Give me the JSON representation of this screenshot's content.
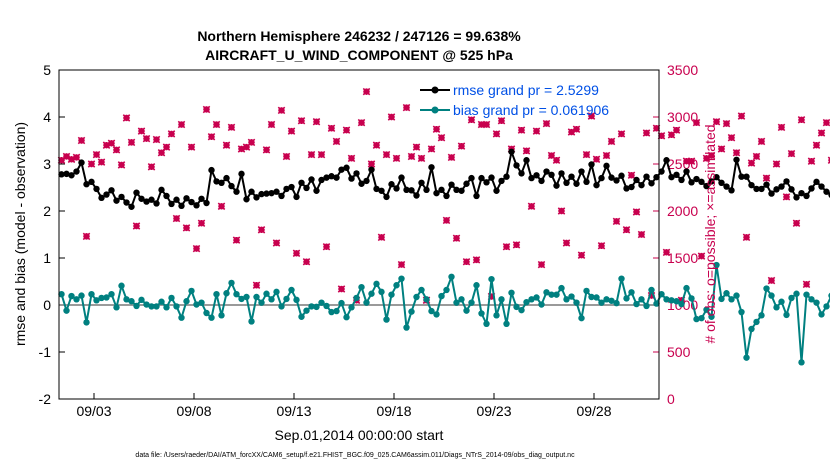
{
  "chart_data": {
    "type": "line",
    "title_line1": "Northern Hemisphere 246232 / 247126 = 99.638%",
    "title_line2": "AIRCRAFT_U_WIND_COMPONENT @ 525 hPa",
    "xlabel": "Sep.01,2014 00:00:00 start",
    "ylabel_left": "rmse and bias (model - observation)",
    "ylabel_right": "# of obs: o=possible; ×=assimilated",
    "footnote": "data file: /Users/raeder/DAI/ATM_forcXX/CAM6_setup/f.e21.FHIST_BGC.f09_025.CAM6assim.011/Diags_NTrS_2014-09/obs_diag_output.nc",
    "xlim": [
      1.25,
      31.25
    ],
    "x_ticks": [
      3,
      8,
      13,
      18,
      23,
      28
    ],
    "x_tick_labels": [
      "09/03",
      "09/08",
      "09/13",
      "09/18",
      "09/23",
      "09/28"
    ],
    "ylim_left": [
      -2,
      5
    ],
    "y_ticks_left": [
      "-2",
      "-1",
      "0",
      "1",
      "2",
      "3",
      "4",
      "5"
    ],
    "ylim_right": [
      0,
      3500
    ],
    "y_ticks_right": [
      "0",
      "500",
      "1000",
      "1500",
      "2000",
      "2500",
      "3000",
      "3500"
    ],
    "zero_line": 0,
    "legend_location": "top-right",
    "colors": {
      "rmse": "#000000",
      "bias": "#008080",
      "obs": "#c8004e",
      "legend_text": "#0050e6"
    },
    "series": [
      {
        "name": "rmse grand pr = 2.5299",
        "color": "#000000",
        "start": 1.375,
        "step": 0.25,
        "values": [
          2.78,
          2.79,
          2.76,
          2.84,
          3.03,
          2.57,
          2.62,
          2.47,
          2.28,
          2.35,
          2.44,
          2.22,
          2.3,
          2.18,
          2.09,
          2.39,
          2.26,
          2.2,
          2.24,
          2.16,
          2.45,
          2.32,
          2.15,
          2.24,
          2.11,
          2.27,
          2.19,
          2.12,
          2.26,
          2.17,
          2.87,
          2.63,
          2.6,
          2.7,
          2.53,
          2.41,
          2.79,
          2.25,
          2.41,
          2.29,
          2.36,
          2.37,
          2.38,
          2.41,
          2.32,
          2.47,
          2.51,
          2.3,
          2.6,
          2.49,
          2.67,
          2.43,
          2.66,
          2.71,
          2.74,
          2.71,
          2.88,
          2.92,
          2.69,
          2.8,
          2.58,
          2.64,
          2.88,
          2.47,
          2.43,
          2.3,
          2.57,
          2.48,
          2.71,
          2.45,
          2.44,
          2.33,
          2.6,
          2.45,
          2.93,
          2.38,
          2.45,
          2.32,
          2.56,
          2.45,
          2.43,
          2.58,
          2.7,
          2.32,
          2.7,
          2.61,
          2.71,
          2.43,
          2.64,
          2.73,
          3.26,
          2.97,
          2.8,
          3.08,
          2.7,
          2.76,
          2.64,
          2.84,
          2.77,
          2.54,
          2.8,
          2.6,
          2.73,
          2.58,
          2.84,
          2.62,
          2.99,
          2.55,
          2.7,
          2.96,
          2.71,
          2.65,
          2.75,
          2.48,
          2.51,
          2.66,
          2.55,
          2.73,
          2.59,
          2.72,
          2.84,
          3.08,
          2.72,
          2.77,
          2.66,
          2.84,
          2.61,
          2.68,
          2.62,
          2.53,
          2.63,
          2.72,
          2.6,
          2.52,
          2.44,
          3.09,
          2.73,
          2.73,
          2.55,
          2.47,
          2.47,
          2.56,
          2.37,
          2.46,
          2.52,
          2.63,
          2.46,
          2.29,
          2.38,
          2.32,
          2.48,
          2.62,
          2.52,
          2.41,
          2.34,
          2.38,
          2.47,
          2.35,
          2.21
        ]
      },
      {
        "name": "bias grand pr = 0.061906",
        "color": "#008080",
        "start": 1.375,
        "step": 0.25,
        "values": [
          0.23,
          -0.12,
          0.19,
          0.12,
          0.2,
          -0.37,
          0.23,
          0.1,
          0.15,
          0.16,
          0.23,
          -0.05,
          0.41,
          0.12,
          0.08,
          -0.02,
          0.11,
          0.01,
          -0.03,
          -0.03,
          0.07,
          -0.05,
          0.15,
          -0.03,
          -0.27,
          0.08,
          0.3,
          0.01,
          0.05,
          -0.17,
          -0.27,
          0.23,
          -0.22,
          0.25,
          0.47,
          0.23,
          0.13,
          0.17,
          -0.35,
          0.17,
          0.05,
          0.24,
          0.12,
          0.28,
          -0.03,
          0.13,
          0.32,
          0.11,
          -0.25,
          -0.12,
          -0.03,
          -0.04,
          0.05,
          -0.02,
          -0.15,
          -0.13,
          0.04,
          -0.26,
          -0.05,
          0.15,
          0.38,
          0.05,
          0.24,
          0.45,
          0.28,
          -0.31,
          0.22,
          0.42,
          0.56,
          -0.48,
          -0.14,
          0.17,
          0.32,
          0.12,
          -0.13,
          -0.2,
          0.19,
          0.32,
          0.6,
          0.05,
          0.12,
          -0.12,
          0.05,
          0.42,
          -0.18,
          -0.4,
          0.55,
          -0.22,
          0.12,
          -0.4,
          0.26,
          -0.04,
          -0.11,
          0.06,
          0.12,
          0.16,
          0.01,
          0.27,
          0.22,
          0.22,
          0.36,
          0.12,
          0.18,
          0.05,
          -0.28,
          0.3,
          0.17,
          0.16,
          0.05,
          0.12,
          0.09,
          0.04,
          0.56,
          0.14,
          0.27,
          0.02,
          0.12,
          -0.02,
          0.32,
          0.03,
          0.23,
          0.12,
          0.1,
          0.08,
          0.02,
          0.36,
          0.14,
          -0.3,
          -0.28,
          -0.1,
          -0.25,
          0.85,
          0.13,
          0.25,
          0.12,
          0.2,
          -0.15,
          -1.12,
          -0.51,
          -0.36,
          -0.22,
          0.35,
          0.2,
          -0.05,
          0.07,
          -0.21,
          0.15,
          0.24,
          -1.22,
          0.22,
          0.12,
          0.05,
          -0.2,
          -0.03,
          0.2,
          0.25,
          0.15,
          0.1,
          0.33,
          0.41,
          0.3,
          0.24,
          0.66
        ]
      },
      {
        "name": "# of obs (possible ○ / assimilated ×)",
        "color": "#c8004e",
        "start": 1.375,
        "step": 0.25,
        "values": [
          2540,
          2580,
          2550,
          2570,
          2750,
          1730,
          2500,
          2600,
          2520,
          2700,
          2720,
          2650,
          2490,
          2990,
          2730,
          1840,
          2850,
          2770,
          2470,
          2760,
          2620,
          2680,
          2820,
          1920,
          2920,
          1820,
          2680,
          1600,
          1870,
          3080,
          2790,
          2920,
          2050,
          2700,
          2890,
          1690,
          2660,
          2680,
          2730,
          1210,
          1800,
          2650,
          2920,
          1660,
          3070,
          2580,
          2850,
          1550,
          2960,
          1460,
          2600,
          2950,
          2600,
          1620,
          2880,
          2740,
          1170,
          2860,
          2560,
          1050,
          2940,
          3270,
          2500,
          2700,
          1720,
          2600,
          3000,
          2560,
          1430,
          3100,
          2580,
          2680,
          2560,
          1050,
          2660,
          2870,
          2780,
          1900,
          2570,
          1710,
          2690,
          1460,
          2970,
          1480,
          2920,
          2920,
          1090,
          2820,
          2960,
          1620,
          2660,
          1640,
          2860,
          2640,
          2050,
          2850,
          1430,
          2930,
          2590,
          2540,
          2000,
          1660,
          2840,
          2870,
          1530,
          2600,
          3010,
          2550,
          1630,
          2590,
          2740,
          1890,
          2820,
          1800,
          2380,
          1990,
          1750,
          2830,
          1100,
          2880,
          2800,
          1560,
          2810,
          2860,
          1050,
          2530,
          2530,
          2940,
          1520,
          2560,
          2590,
          2950,
          2660,
          2930,
          2780,
          2620,
          3010,
          1720,
          2510,
          2580,
          2740,
          2350,
          1260,
          2500,
          2890,
          2150,
          2610,
          1870,
          2970,
          1220,
          2530,
          2700,
          2830,
          2940,
          2540,
          2640,
          2890,
          2910,
          2860,
          2350,
          3010,
          1820,
          2040
        ]
      }
    ]
  }
}
